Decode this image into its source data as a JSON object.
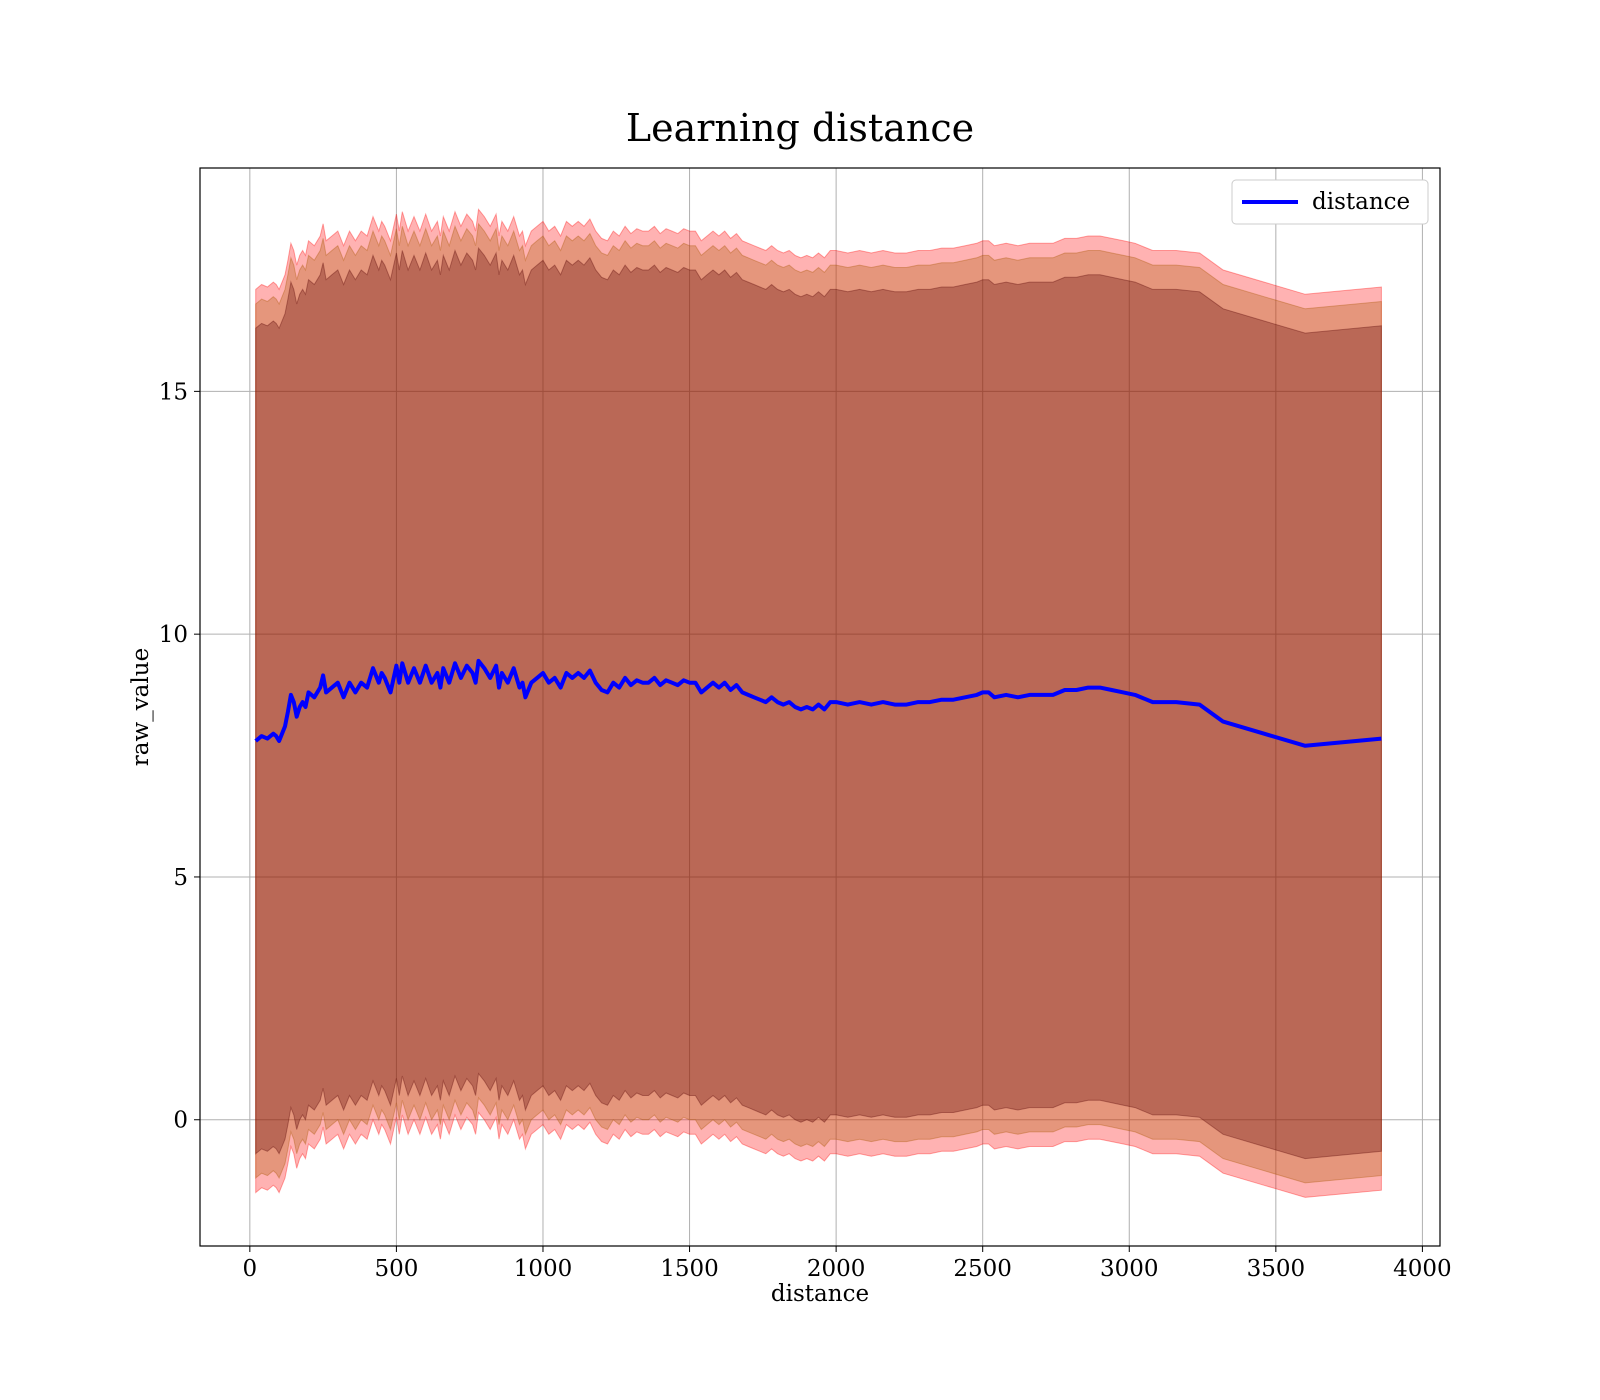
{
  "chart_data": {
    "type": "line",
    "title": "Learning distance",
    "xlabel": "distance",
    "ylabel": "raw_value",
    "xlim": [
      -170,
      4060
    ],
    "ylim": [
      -2.6,
      19.6
    ],
    "xticks": [
      0,
      500,
      1000,
      1500,
      2000,
      2500,
      3000,
      3500,
      4000
    ],
    "yticks": [
      0,
      5,
      10,
      15
    ],
    "grid": true,
    "legend": {
      "position": "top-right",
      "entries": [
        "distance"
      ]
    },
    "colors": {
      "line": "#0000ff",
      "band": "#ff0000",
      "inner_band": "#550000",
      "middle_band": "#aa5500"
    },
    "series": [
      {
        "name": "distance",
        "x": [
          20,
          40,
          60,
          80,
          90,
          100,
          120,
          130,
          140,
          150,
          160,
          170,
          180,
          190,
          200,
          220,
          240,
          250,
          260,
          280,
          300,
          320,
          340,
          360,
          380,
          400,
          420,
          440,
          450,
          460,
          480,
          500,
          510,
          520,
          540,
          560,
          580,
          600,
          620,
          640,
          650,
          660,
          680,
          700,
          720,
          740,
          760,
          770,
          780,
          800,
          820,
          840,
          850,
          860,
          880,
          900,
          920,
          930,
          940,
          960,
          980,
          1000,
          1020,
          1040,
          1060,
          1080,
          1100,
          1120,
          1140,
          1160,
          1180,
          1200,
          1220,
          1240,
          1260,
          1280,
          1300,
          1320,
          1340,
          1360,
          1380,
          1400,
          1420,
          1440,
          1460,
          1480,
          1500,
          1520,
          1540,
          1560,
          1580,
          1600,
          1620,
          1640,
          1660,
          1680,
          1700,
          1720,
          1740,
          1760,
          1780,
          1800,
          1820,
          1840,
          1860,
          1880,
          1900,
          1920,
          1940,
          1960,
          1980,
          2000,
          2040,
          2080,
          2120,
          2160,
          2200,
          2240,
          2280,
          2320,
          2360,
          2400,
          2440,
          2480,
          2500,
          2520,
          2540,
          2580,
          2620,
          2660,
          2700,
          2740,
          2780,
          2820,
          2860,
          2900,
          2940,
          2980,
          3020,
          3080,
          3160,
          3240,
          3320,
          3460,
          3600,
          3860
        ],
        "y": [
          7.8,
          7.9,
          7.85,
          7.95,
          7.9,
          7.8,
          8.1,
          8.4,
          8.75,
          8.6,
          8.3,
          8.5,
          8.6,
          8.5,
          8.8,
          8.7,
          8.9,
          9.15,
          8.8,
          8.9,
          9.0,
          8.7,
          9.0,
          8.8,
          9.0,
          8.9,
          9.3,
          9.0,
          9.2,
          9.1,
          8.8,
          9.35,
          9.0,
          9.4,
          9.0,
          9.3,
          9.0,
          9.35,
          9.0,
          9.2,
          8.9,
          9.3,
          9.0,
          9.4,
          9.1,
          9.35,
          9.2,
          9.0,
          9.45,
          9.3,
          9.1,
          9.35,
          8.9,
          9.2,
          9.0,
          9.3,
          8.9,
          9.0,
          8.7,
          9.0,
          9.1,
          9.2,
          9.0,
          9.1,
          8.9,
          9.2,
          9.1,
          9.2,
          9.1,
          9.25,
          9.0,
          8.85,
          8.8,
          9.0,
          8.9,
          9.1,
          8.95,
          9.05,
          9.0,
          9.0,
          9.1,
          8.95,
          9.05,
          9.0,
          8.95,
          9.05,
          9.0,
          9.0,
          8.8,
          8.9,
          9.0,
          8.9,
          9.0,
          8.85,
          8.95,
          8.8,
          8.75,
          8.7,
          8.65,
          8.6,
          8.7,
          8.6,
          8.55,
          8.6,
          8.5,
          8.45,
          8.5,
          8.45,
          8.55,
          8.45,
          8.6,
          8.6,
          8.55,
          8.6,
          8.55,
          8.6,
          8.55,
          8.55,
          8.6,
          8.6,
          8.65,
          8.65,
          8.7,
          8.75,
          8.8,
          8.8,
          8.7,
          8.75,
          8.7,
          8.75,
          8.75,
          8.75,
          8.85,
          8.85,
          8.9,
          8.9,
          8.85,
          8.8,
          8.75,
          8.6,
          8.6,
          8.55,
          8.2,
          7.95,
          7.7,
          7.85
        ]
      }
    ],
    "bands": [
      {
        "name": "outer",
        "offset": 9.3,
        "opacity": 0.3
      },
      {
        "name": "middle",
        "offset": 9.0,
        "opacity": 0.3
      },
      {
        "name": "inner",
        "offset": 8.5,
        "opacity": 0.3
      }
    ]
  }
}
